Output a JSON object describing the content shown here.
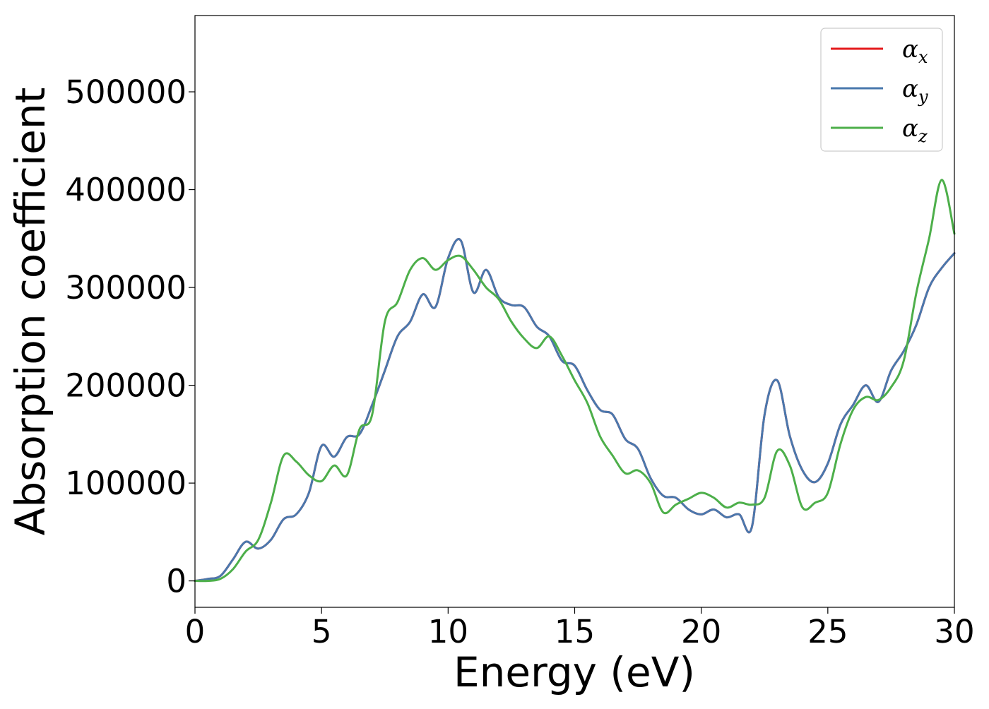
{
  "chart_data": {
    "type": "line",
    "xlabel": "Energy (eV)",
    "ylabel": "Absorption coefficient",
    "xlim": [
      0,
      30
    ],
    "ylim": [
      -27000,
      578000
    ],
    "xticks": [
      0,
      5,
      10,
      15,
      20,
      25,
      30
    ],
    "yticks": [
      0,
      100000,
      200000,
      300000,
      400000,
      500000
    ],
    "legend_position": "top-right",
    "grid": false,
    "series": [
      {
        "name": "αx",
        "label_base": "α",
        "label_sub": "x",
        "color": "#e41a1c",
        "x": [
          0,
          0.5,
          1.0,
          1.5,
          2.0,
          2.5,
          3.0,
          3.5,
          4.0,
          4.5,
          5.0,
          5.5,
          6.0,
          6.5,
          7.0,
          7.5,
          8.0,
          8.5,
          9.0,
          9.5,
          10.0,
          10.5,
          11.0,
          11.5,
          12.0,
          12.5,
          13.0,
          13.5,
          14.0,
          14.5,
          15.0,
          15.5,
          16.0,
          16.5,
          17.0,
          17.5,
          18.0,
          18.5,
          19.0,
          19.5,
          20.0,
          20.5,
          21.0,
          21.5,
          22.0,
          22.5,
          23.0,
          23.5,
          24.0,
          24.5,
          25.0,
          25.5,
          26.0,
          26.5,
          27.0,
          27.5,
          28.0,
          28.5,
          29.0,
          29.5,
          30.0
        ],
        "values": [
          0,
          2000,
          5000,
          22000,
          40000,
          33000,
          42000,
          63000,
          68000,
          90000,
          138000,
          127000,
          147000,
          150000,
          180000,
          215000,
          250000,
          265000,
          293000,
          280000,
          330000,
          348000,
          295000,
          318000,
          290000,
          282000,
          280000,
          260000,
          250000,
          225000,
          220000,
          195000,
          175000,
          170000,
          145000,
          135000,
          105000,
          87000,
          85000,
          73000,
          68000,
          73000,
          65000,
          68000,
          55000,
          170000,
          205000,
          148000,
          113000,
          101000,
          120000,
          160000,
          180000,
          200000,
          183000,
          215000,
          235000,
          262000,
          300000,
          320000,
          335000
        ]
      },
      {
        "name": "αy",
        "label_base": "α",
        "label_sub": "y",
        "color": "#4a78ad",
        "x": [
          0,
          0.5,
          1.0,
          1.5,
          2.0,
          2.5,
          3.0,
          3.5,
          4.0,
          4.5,
          5.0,
          5.5,
          6.0,
          6.5,
          7.0,
          7.5,
          8.0,
          8.5,
          9.0,
          9.5,
          10.0,
          10.5,
          11.0,
          11.5,
          12.0,
          12.5,
          13.0,
          13.5,
          14.0,
          14.5,
          15.0,
          15.5,
          16.0,
          16.5,
          17.0,
          17.5,
          18.0,
          18.5,
          19.0,
          19.5,
          20.0,
          20.5,
          21.0,
          21.5,
          22.0,
          22.5,
          23.0,
          23.5,
          24.0,
          24.5,
          25.0,
          25.5,
          26.0,
          26.5,
          27.0,
          27.5,
          28.0,
          28.5,
          29.0,
          29.5,
          30.0
        ],
        "values": [
          0,
          2000,
          5000,
          22000,
          40000,
          33000,
          42000,
          63000,
          68000,
          90000,
          138000,
          127000,
          147000,
          150000,
          180000,
          215000,
          250000,
          265000,
          293000,
          280000,
          330000,
          348000,
          295000,
          318000,
          290000,
          282000,
          280000,
          260000,
          250000,
          225000,
          220000,
          195000,
          175000,
          170000,
          145000,
          135000,
          105000,
          87000,
          85000,
          73000,
          68000,
          73000,
          65000,
          68000,
          55000,
          170000,
          205000,
          148000,
          113000,
          101000,
          120000,
          160000,
          180000,
          200000,
          183000,
          215000,
          235000,
          262000,
          300000,
          320000,
          335000
        ]
      },
      {
        "name": "αz",
        "label_base": "α",
        "label_sub": "z",
        "color": "#4daf4a",
        "x": [
          0,
          0.5,
          1.0,
          1.5,
          2.0,
          2.5,
          3.0,
          3.5,
          4.0,
          4.5,
          5.0,
          5.5,
          6.0,
          6.5,
          7.0,
          7.5,
          8.0,
          8.5,
          9.0,
          9.5,
          10.0,
          10.5,
          11.0,
          11.5,
          12.0,
          12.5,
          13.0,
          13.5,
          14.0,
          14.5,
          15.0,
          15.5,
          16.0,
          16.5,
          17.0,
          17.5,
          18.0,
          18.5,
          19.0,
          19.5,
          20.0,
          20.5,
          21.0,
          21.5,
          22.0,
          22.5,
          23.0,
          23.5,
          24.0,
          24.5,
          25.0,
          25.5,
          26.0,
          26.5,
          27.0,
          27.5,
          28.0,
          28.5,
          29.0,
          29.5,
          30.0
        ],
        "values": [
          0,
          0,
          2000,
          12000,
          30000,
          42000,
          80000,
          128000,
          122000,
          108000,
          102000,
          118000,
          108000,
          155000,
          170000,
          265000,
          285000,
          318000,
          330000,
          318000,
          328000,
          332000,
          318000,
          300000,
          288000,
          265000,
          248000,
          238000,
          250000,
          230000,
          205000,
          182000,
          148000,
          128000,
          110000,
          113000,
          100000,
          70000,
          78000,
          84000,
          90000,
          85000,
          75000,
          80000,
          78000,
          85000,
          133000,
          118000,
          75000,
          80000,
          90000,
          140000,
          175000,
          188000,
          185000,
          198000,
          225000,
          295000,
          350000,
          410000,
          355000
        ]
      }
    ]
  }
}
